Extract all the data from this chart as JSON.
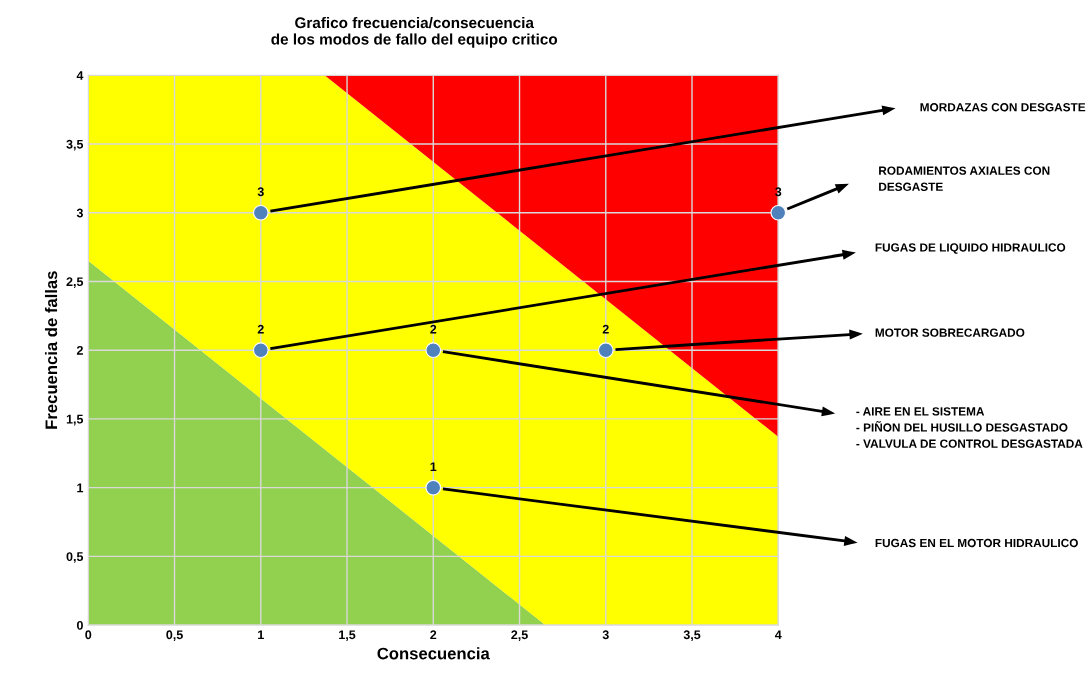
{
  "chart_data": {
    "type": "area",
    "stacked": true,
    "title": "Grafico frecuencia/consecuencia\nde los modos de fallo del equipo critico",
    "xlabel": "Consecuencia",
    "ylabel": "Frecuencia de fallas",
    "xlim": [
      0,
      4
    ],
    "ylim": [
      0,
      4
    ],
    "xticks": [
      0,
      {
        "value": 0.5,
        "label": "0,5"
      },
      1,
      {
        "value": 1.5,
        "label": "1,5"
      },
      2,
      {
        "value": 2.5,
        "label": "2,5"
      },
      3,
      {
        "value": 3.5,
        "label": "3,5"
      },
      4
    ],
    "yticks": [
      0,
      {
        "value": 0.5,
        "label": "0,5"
      },
      1,
      {
        "value": 1.5,
        "label": "1,5"
      },
      2,
      {
        "value": 2.5,
        "label": "2,5"
      },
      3,
      {
        "value": 3.5,
        "label": "3,5"
      },
      4
    ],
    "grid": true,
    "x": [
      0,
      1.37,
      2.65,
      4
    ],
    "series": [
      {
        "color": "#92d050",
        "values": [
          2.65,
          1.28,
          0,
          0
        ]
      },
      {
        "color": "#ffff00",
        "values": [
          1.35,
          2.72,
          2.72,
          1.37
        ]
      },
      {
        "color": "#ff0000",
        "values": [
          0,
          0,
          1.28,
          2.63
        ]
      },
      {
        "type": "scatter",
        "color": "#4f81bd",
        "marker": "circle",
        "data_labels": true,
        "x": [
          1,
          4,
          1,
          2,
          3,
          2
        ],
        "values": [
          3,
          3,
          2,
          2,
          2,
          1
        ]
      }
    ],
    "annotations": [
      "MORDAZAS CON DESGASTE",
      "RODAMIENTOS AXIALES CON\nDESGASTE",
      "FUGAS DE LIQUIDO HIDRAULICO",
      "MOTOR SOBRECARGADO",
      "- AIRE EN EL SISTEMA\n- PIÑON DEL HUSILLO DESGASTADO\n- VALVULA DE CONTROL DESGASTADA",
      "FUGAS EN EL MOTOR HIDRAULICO"
    ]
  }
}
